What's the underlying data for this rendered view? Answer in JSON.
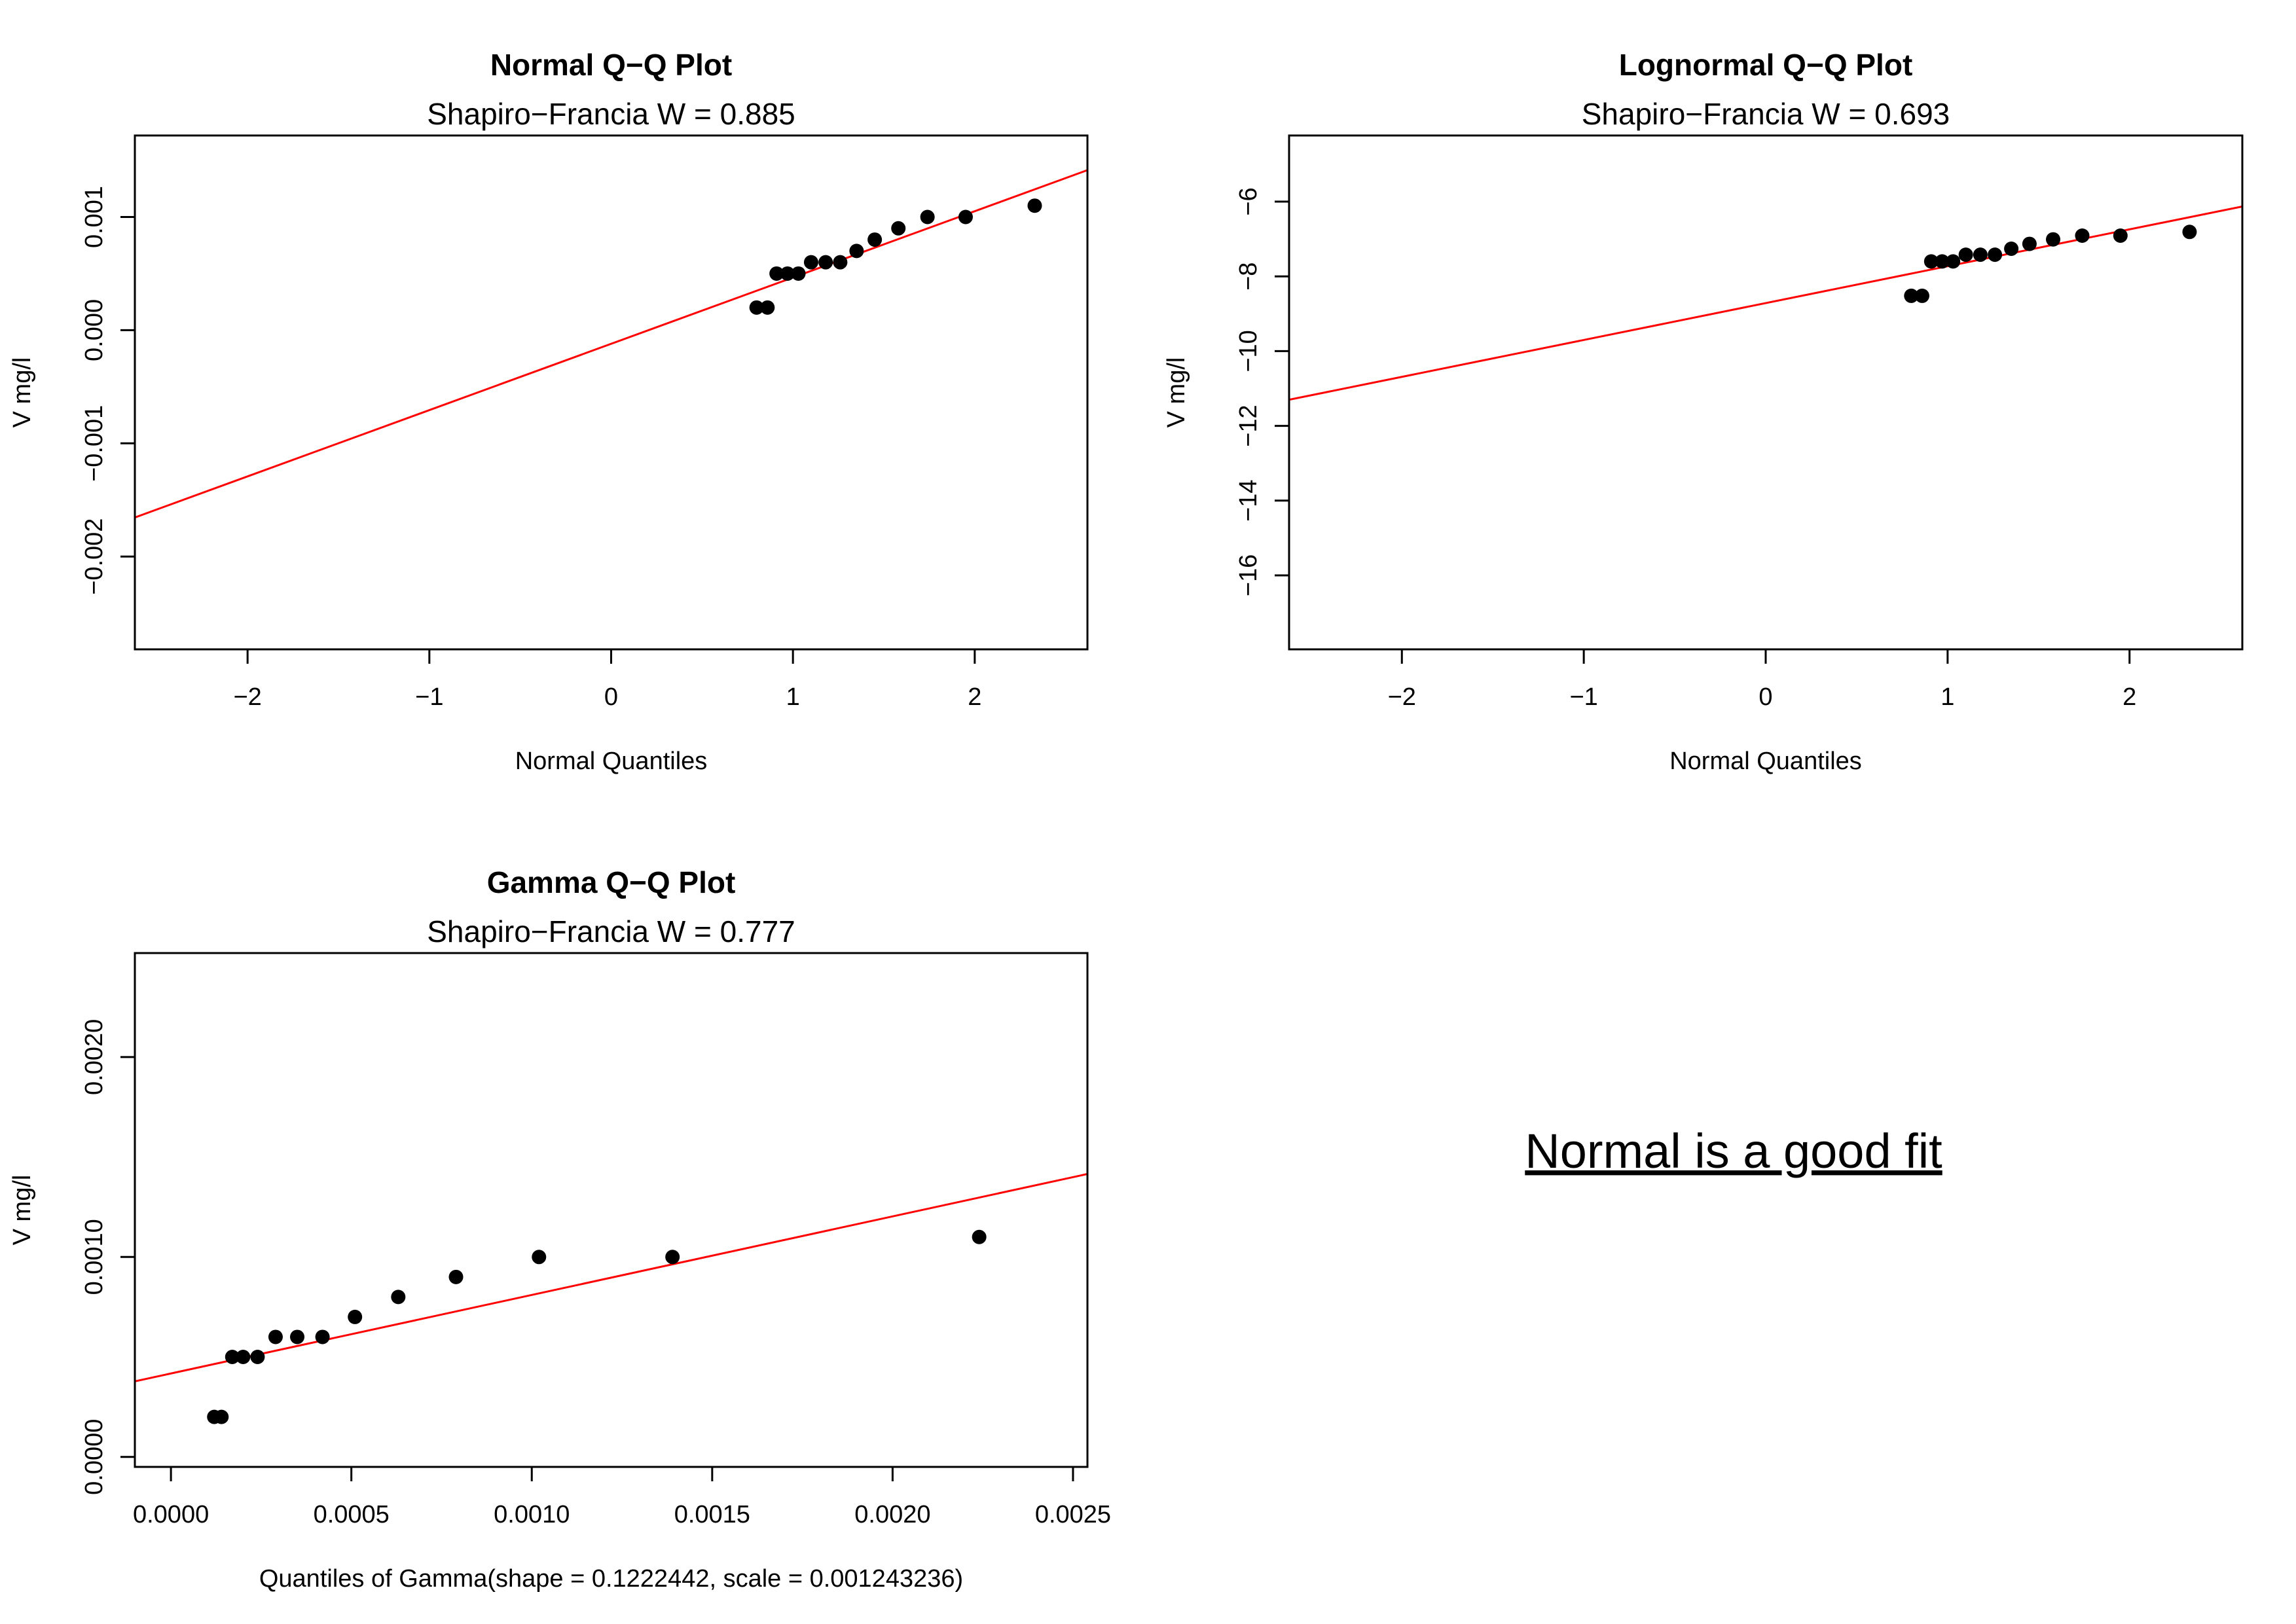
{
  "chart_data": [
    {
      "type": "scatter",
      "title": "Normal Q−Q Plot",
      "subtitle": "Shapiro−Francia W = 0.885",
      "xlabel": "Normal Quantiles",
      "ylabel": "V mg/l",
      "xlim": [
        -2.62,
        2.62
      ],
      "ylim": [
        -0.00282,
        0.00172
      ],
      "xticks": [
        -2,
        -1,
        0,
        1,
        2
      ],
      "xtick_labels": [
        "−2",
        "−1",
        "0",
        "1",
        "2"
      ],
      "yticks": [
        -0.002,
        -0.001,
        0.0,
        0.001
      ],
      "ytick_labels": [
        "−0.002",
        "−0.001",
        "0.000",
        "0.001"
      ],
      "grid": false,
      "point_color": "#000000",
      "line_color": "#ff0000",
      "points": {
        "x": [
          0.8,
          0.86,
          0.91,
          0.97,
          1.03,
          1.1,
          1.18,
          1.26,
          1.35,
          1.45,
          1.58,
          1.74,
          1.95,
          2.33
        ],
        "y": [
          0.0002,
          0.0002,
          0.0005,
          0.0005,
          0.0005,
          0.0006,
          0.0006,
          0.0006,
          0.0007,
          0.0008,
          0.0009,
          0.001,
          0.001,
          0.0011
        ]
      },
      "fit_line": {
        "x": [
          -2.62,
          2.62
        ],
        "y": [
          -0.001655,
          0.001414
        ]
      }
    },
    {
      "type": "scatter",
      "title": "Lognormal Q−Q Plot",
      "subtitle": "Shapiro−Francia W = 0.693",
      "xlabel": "Normal Quantiles",
      "ylabel": "V mg/l",
      "xlim": [
        -2.62,
        2.62
      ],
      "ylim": [
        -17.98,
        -4.23
      ],
      "xticks": [
        -2,
        -1,
        0,
        1,
        2
      ],
      "xtick_labels": [
        "−2",
        "−1",
        "0",
        "1",
        "2"
      ],
      "yticks": [
        -16,
        -14,
        -12,
        -10,
        -8,
        -6
      ],
      "ytick_labels": [
        "−16",
        "−14",
        "−12",
        "−10",
        "−8",
        "−6"
      ],
      "grid": false,
      "point_color": "#000000",
      "line_color": "#ff0000",
      "points": {
        "x": [
          0.8,
          0.86,
          0.91,
          0.97,
          1.03,
          1.1,
          1.18,
          1.26,
          1.35,
          1.45,
          1.58,
          1.74,
          1.95,
          2.33
        ],
        "y": [
          -8.52,
          -8.52,
          -7.6,
          -7.6,
          -7.6,
          -7.42,
          -7.42,
          -7.42,
          -7.26,
          -7.13,
          -7.01,
          -6.91,
          -6.91,
          -6.81
        ]
      },
      "fit_line": {
        "x": [
          -2.62,
          2.62
        ],
        "y": [
          -11.3,
          -6.13
        ]
      }
    },
    {
      "type": "scatter",
      "title": "Gamma Q−Q Plot",
      "subtitle": "Shapiro−Francia W = 0.777",
      "xlabel": "Quantiles of Gamma(shape = 0.1222442, scale = 0.001243236)",
      "ylabel": "V mg/l",
      "xlim": [
        -0.0001,
        0.00254
      ],
      "ylim": [
        -5e-05,
        0.00252
      ],
      "xticks": [
        0.0,
        0.0005,
        0.001,
        0.0015,
        0.002,
        0.0025
      ],
      "xtick_labels": [
        "0.0000",
        "0.0005",
        "0.0010",
        "0.0015",
        "0.0020",
        "0.0025"
      ],
      "yticks": [
        0.0,
        0.001,
        0.002
      ],
      "ytick_labels": [
        "0.0000",
        "0.0010",
        "0.0020"
      ],
      "grid": false,
      "point_color": "#000000",
      "line_color": "#ff0000",
      "points": {
        "x": [
          0.00012,
          0.00014,
          0.00017,
          0.0002,
          0.00024,
          0.00029,
          0.00035,
          0.00042,
          0.00051,
          0.00063,
          0.00079,
          0.00102,
          0.00139,
          0.00224
        ],
        "y": [
          0.0002,
          0.0002,
          0.0005,
          0.0005,
          0.0005,
          0.0006,
          0.0006,
          0.0006,
          0.0007,
          0.0008,
          0.0009,
          0.001,
          0.001,
          0.0011
        ]
      },
      "fit_line": {
        "x": [
          -0.0001,
          0.00254
        ],
        "y": [
          0.000378,
          0.001415
        ]
      }
    }
  ],
  "annotation": {
    "text": "Normal is a good fit"
  }
}
